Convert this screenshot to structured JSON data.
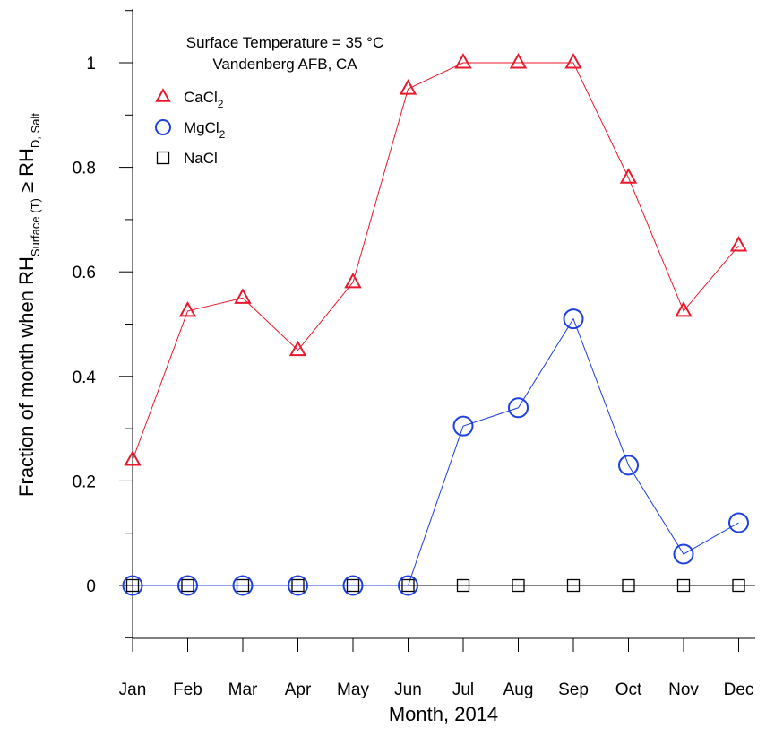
{
  "chart_data": {
    "type": "line",
    "title_lines": [
      "Surface Temperature = 35 °C",
      "Vandenberg AFB, CA"
    ],
    "xlabel": "Month, 2014",
    "ylabel": {
      "main": "Fraction of month when RH",
      "sub1": "Surface (T)",
      "op": " ≥ RH",
      "sub2": "D, Salt"
    },
    "categories": [
      "Jan",
      "Feb",
      "Mar",
      "Apr",
      "May",
      "Jun",
      "Jul",
      "Aug",
      "Sep",
      "Oct",
      "Nov",
      "Dec"
    ],
    "ylim": [
      -0.1,
      1.1
    ],
    "yticks": [
      0,
      0.2,
      0.4,
      0.6,
      0.8,
      1
    ],
    "ytick_labels": [
      "0",
      "0.2",
      "0.4",
      "0.6",
      "0.8",
      "1"
    ],
    "legend_position": "top-left",
    "grid": false,
    "series": [
      {
        "name": "CaCl",
        "name_sub": "2",
        "marker": "triangle",
        "color": "#e8192c",
        "values": [
          0.24,
          0.525,
          0.55,
          0.45,
          0.58,
          0.95,
          1.0,
          1.0,
          1.0,
          0.78,
          0.525,
          0.65
        ]
      },
      {
        "name": "MgCl",
        "name_sub": "2",
        "marker": "circle",
        "color": "#1c3fe0",
        "values": [
          0,
          0,
          0,
          0,
          0,
          0,
          0.305,
          0.34,
          0.51,
          0.23,
          0.06,
          0.12
        ]
      },
      {
        "name": "NaCl",
        "name_sub": "",
        "marker": "square",
        "color": "#000000",
        "values": [
          0,
          0,
          0,
          0,
          0,
          0,
          0,
          0,
          0,
          0,
          0,
          0
        ]
      }
    ]
  }
}
